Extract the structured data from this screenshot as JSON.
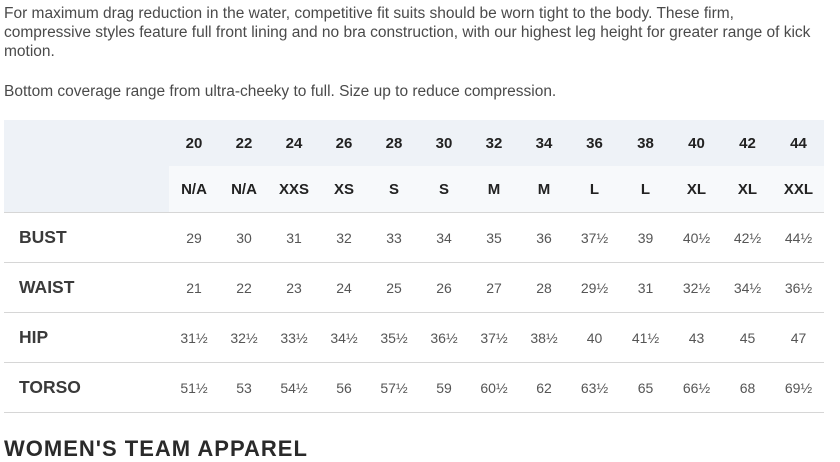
{
  "intro": "For maximum drag reduction in the water, competitive fit suits should be worn tight to the body. These firm, compressive styles feature full front lining and no bra construction, with our highest leg height for greater range of kick motion.",
  "coverage_note": "Bottom coverage range from ultra-cheeky to full. Size up to reduce compression.",
  "table": {
    "numeric_sizes": [
      "20",
      "22",
      "24",
      "26",
      "28",
      "30",
      "32",
      "34",
      "36",
      "38",
      "40",
      "42",
      "44"
    ],
    "letter_sizes": [
      "N/A",
      "N/A",
      "XXS",
      "XS",
      "S",
      "S",
      "M",
      "M",
      "L",
      "L",
      "XL",
      "XL",
      "XXL"
    ],
    "rows": [
      {
        "label": "BUST",
        "values": [
          "29",
          "30",
          "31",
          "32",
          "33",
          "34",
          "35",
          "36",
          "37½",
          "39",
          "40½",
          "42½",
          "44½"
        ]
      },
      {
        "label": "WAIST",
        "values": [
          "21",
          "22",
          "23",
          "24",
          "25",
          "26",
          "27",
          "28",
          "29½",
          "31",
          "32½",
          "34½",
          "36½"
        ]
      },
      {
        "label": "HIP",
        "values": [
          "31½",
          "32½",
          "33½",
          "34½",
          "35½",
          "36½",
          "37½",
          "38½",
          "40",
          "41½",
          "43",
          "45",
          "47"
        ]
      },
      {
        "label": "TORSO",
        "values": [
          "51½",
          "53",
          "54½",
          "56",
          "57½",
          "59",
          "60½",
          "62",
          "63½",
          "65",
          "66½",
          "68",
          "69½"
        ]
      }
    ]
  },
  "next_heading": "WOMEN'S TEAM APPAREL"
}
